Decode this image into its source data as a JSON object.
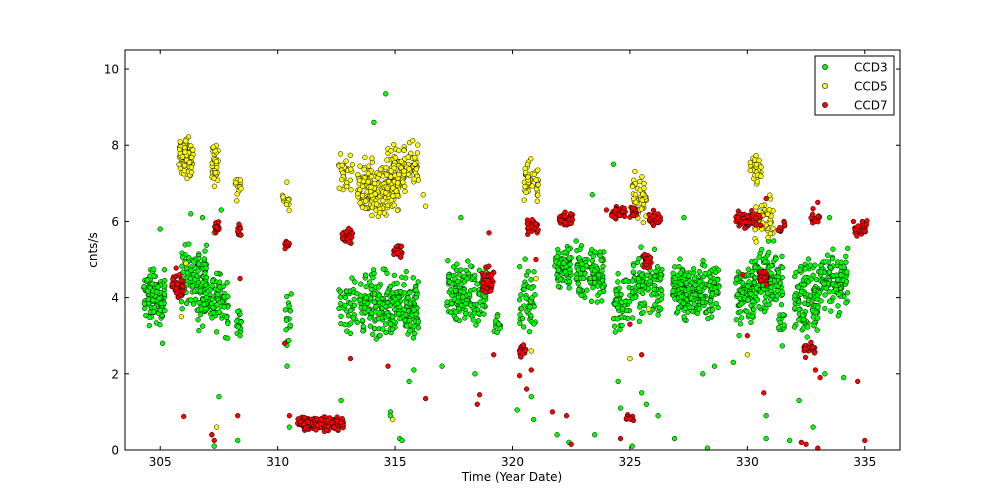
{
  "chart_data": {
    "type": "scatter",
    "xlabel": "Time (Year Date)",
    "ylabel": "cnts/s",
    "xlim": [
      303.5,
      336.5
    ],
    "ylim": [
      0,
      10.5
    ],
    "xticks": [
      305,
      310,
      315,
      320,
      325,
      330,
      335
    ],
    "yticks": [
      0,
      2,
      4,
      6,
      8,
      10
    ],
    "grid": false,
    "legend_position": "top-right",
    "series": [
      {
        "name": "CCD3",
        "color": "#00ff00",
        "clusters": [
          {
            "x": [
              304.3,
              305.2
            ],
            "y": [
              3.0,
              5.0
            ],
            "n": 120
          },
          {
            "x": [
              305.9,
              307.0
            ],
            "y": [
              3.3,
              5.8
            ],
            "n": 110
          },
          {
            "x": [
              306.6,
              307.4
            ],
            "y": [
              2.8,
              5.2
            ],
            "n": 60
          },
          {
            "x": [
              307.4,
              307.9
            ],
            "y": [
              2.7,
              5.2
            ],
            "n": 45
          },
          {
            "x": [
              308.25,
              308.45
            ],
            "y": [
              2.4,
              4.2
            ],
            "n": 16
          },
          {
            "x": [
              310.3,
              310.6
            ],
            "y": [
              2.2,
              4.6
            ],
            "n": 18
          },
          {
            "x": [
              312.6,
              313.4
            ],
            "y": [
              2.7,
              5.0
            ],
            "n": 40
          },
          {
            "x": [
              313.5,
              316.0
            ],
            "y": [
              2.5,
              5.0
            ],
            "n": 260
          },
          {
            "x": [
              317.2,
              318.9
            ],
            "y": [
              3.0,
              5.2
            ],
            "n": 150
          },
          {
            "x": [
              319.2,
              319.5
            ],
            "y": [
              3.0,
              3.7
            ],
            "n": 12
          },
          {
            "x": [
              320.3,
              321.0
            ],
            "y": [
              2.6,
              5.4
            ],
            "n": 50
          },
          {
            "x": [
              321.8,
              322.5
            ],
            "y": [
              3.8,
              5.8
            ],
            "n": 70
          },
          {
            "x": [
              322.7,
              323.9
            ],
            "y": [
              3.5,
              5.8
            ],
            "n": 110
          },
          {
            "x": [
              324.3,
              325.0
            ],
            "y": [
              2.6,
              5.2
            ],
            "n": 55
          },
          {
            "x": [
              325.1,
              326.4
            ],
            "y": [
              3.2,
              5.4
            ],
            "n": 110
          },
          {
            "x": [
              326.8,
              328.8
            ],
            "y": [
              3.2,
              5.2
            ],
            "n": 240
          },
          {
            "x": [
              329.5,
              330.3
            ],
            "y": [
              2.8,
              5.2
            ],
            "n": 90
          },
          {
            "x": [
              330.3,
              331.5
            ],
            "y": [
              3.3,
              5.6
            ],
            "n": 130
          },
          {
            "x": [
              331.3,
              331.6
            ],
            "y": [
              2.5,
              4.2
            ],
            "n": 12
          },
          {
            "x": [
              332.0,
              333.0
            ],
            "y": [
              2.4,
              5.6
            ],
            "n": 110
          },
          {
            "x": [
              333.0,
              334.3
            ],
            "y": [
              3.3,
              5.6
            ],
            "n": 120
          }
        ],
        "points": [
          [
            305.0,
            5.8
          ],
          [
            305.1,
            2.8
          ],
          [
            306.3,
            6.2
          ],
          [
            306.8,
            6.1
          ],
          [
            307.6,
            6.3
          ],
          [
            307.5,
            1.4
          ],
          [
            307.2,
            0.4
          ],
          [
            307.3,
            0.1
          ],
          [
            308.3,
            0.25
          ],
          [
            308.4,
            3.0
          ],
          [
            310.4,
            2.2
          ],
          [
            310.5,
            0.6
          ],
          [
            312.7,
            1.3
          ],
          [
            314.1,
            8.6
          ],
          [
            314.6,
            9.35
          ],
          [
            314.8,
            1.0
          ],
          [
            314.8,
            0.9
          ],
          [
            315.2,
            0.3
          ],
          [
            315.3,
            0.25
          ],
          [
            315.6,
            1.8
          ],
          [
            315.8,
            2.1
          ],
          [
            317.0,
            2.2
          ],
          [
            317.8,
            6.1
          ],
          [
            318.4,
            2.0
          ],
          [
            320.2,
            1.05
          ],
          [
            320.9,
            0.8
          ],
          [
            320.8,
            1.4
          ],
          [
            321.9,
            0.4
          ],
          [
            322.4,
            0.2
          ],
          [
            323.4,
            6.7
          ],
          [
            323.5,
            0.4
          ],
          [
            324.3,
            7.5
          ],
          [
            324.5,
            1.8
          ],
          [
            324.6,
            1.1
          ],
          [
            325.1,
            0.1
          ],
          [
            325.5,
            1.5
          ],
          [
            325.7,
            1.2
          ],
          [
            326.2,
            0.9
          ],
          [
            326.9,
            0.3
          ],
          [
            327.3,
            6.1
          ],
          [
            328.1,
            2.0
          ],
          [
            328.3,
            0.05
          ],
          [
            328.6,
            2.2
          ],
          [
            329.4,
            2.3
          ],
          [
            330.8,
            0.3
          ],
          [
            330.8,
            0.9
          ],
          [
            331.8,
            0.25
          ],
          [
            332.2,
            1.3
          ],
          [
            332.8,
            0.6
          ],
          [
            333.3,
            2.0
          ],
          [
            333.5,
            6.1
          ],
          [
            334.1,
            1.9
          ]
        ]
      },
      {
        "name": "CCD5",
        "color": "#ffff00",
        "clusters": [
          {
            "x": [
              305.8,
              306.4
            ],
            "y": [
              6.9,
              8.5
            ],
            "n": 90
          },
          {
            "x": [
              307.2,
              307.5
            ],
            "y": [
              6.8,
              8.3
            ],
            "n": 30
          },
          {
            "x": [
              308.2,
              308.45
            ],
            "y": [
              6.4,
              7.3
            ],
            "n": 14
          },
          {
            "x": [
              310.2,
              310.5
            ],
            "y": [
              6.0,
              7.1
            ],
            "n": 12
          },
          {
            "x": [
              312.6,
              313.2
            ],
            "y": [
              6.5,
              8.0
            ],
            "n": 30
          },
          {
            "x": [
              313.4,
              315.2
            ],
            "y": [
              5.8,
              8.0
            ],
            "n": 210
          },
          {
            "x": [
              314.8,
              316.0
            ],
            "y": [
              6.4,
              8.4
            ],
            "n": 110
          },
          {
            "x": [
              320.5,
              321.1
            ],
            "y": [
              6.3,
              7.8
            ],
            "n": 45
          },
          {
            "x": [
              325.1,
              325.7
            ],
            "y": [
              5.7,
              7.5
            ],
            "n": 55
          },
          {
            "x": [
              330.1,
              330.6
            ],
            "y": [
              6.8,
              7.9
            ],
            "n": 30
          },
          {
            "x": [
              330.3,
              331.1
            ],
            "y": [
              5.2,
              6.8
            ],
            "n": 50
          }
        ],
        "points": [
          [
            305.9,
            3.5
          ],
          [
            306.1,
            4.9
          ],
          [
            307.3,
            5.7
          ],
          [
            307.4,
            0.6
          ],
          [
            313.0,
            5.5
          ],
          [
            314.9,
            0.8
          ],
          [
            316.2,
            6.7
          ],
          [
            316.3,
            6.4
          ],
          [
            320.8,
            2.6
          ],
          [
            321.0,
            4.5
          ],
          [
            325.0,
            2.4
          ],
          [
            325.8,
            3.7
          ],
          [
            330.0,
            2.5
          ],
          [
            330.5,
            7.6
          ]
        ]
      },
      {
        "name": "CCD7",
        "color": "#ff0000",
        "clusters": [
          {
            "x": [
              305.5,
              306.0
            ],
            "y": [
              3.8,
              4.8
            ],
            "n": 45
          },
          {
            "x": [
              307.3,
              307.5
            ],
            "y": [
              5.6,
              6.1
            ],
            "n": 14
          },
          {
            "x": [
              308.3,
              308.45
            ],
            "y": [
              5.5,
              6.0
            ],
            "n": 10
          },
          {
            "x": [
              310.3,
              310.5
            ],
            "y": [
              5.2,
              5.6
            ],
            "n": 10
          },
          {
            "x": [
              310.8,
              312.8
            ],
            "y": [
              0.45,
              0.95
            ],
            "n": 180
          },
          {
            "x": [
              312.7,
              313.2
            ],
            "y": [
              5.3,
              5.9
            ],
            "n": 28
          },
          {
            "x": [
              314.9,
              315.3
            ],
            "y": [
              4.9,
              5.6
            ],
            "n": 24
          },
          {
            "x": [
              318.7,
              319.2
            ],
            "y": [
              3.9,
              5.0
            ],
            "n": 40
          },
          {
            "x": [
              320.3,
              320.6
            ],
            "y": [
              2.3,
              2.9
            ],
            "n": 24
          },
          {
            "x": [
              320.6,
              321.1
            ],
            "y": [
              5.5,
              6.2
            ],
            "n": 30
          },
          {
            "x": [
              322.0,
              322.6
            ],
            "y": [
              5.8,
              6.3
            ],
            "n": 32
          },
          {
            "x": [
              324.2,
              324.8
            ],
            "y": [
              6.0,
              6.5
            ],
            "n": 38
          },
          {
            "x": [
              324.8,
              325.2
            ],
            "y": [
              0.7,
              0.95
            ],
            "n": 12
          },
          {
            "x": [
              325.0,
              325.3
            ],
            "y": [
              6.0,
              6.5
            ],
            "n": 16
          },
          {
            "x": [
              325.5,
              325.9
            ],
            "y": [
              4.7,
              5.2
            ],
            "n": 20
          },
          {
            "x": [
              325.8,
              326.3
            ],
            "y": [
              5.8,
              6.4
            ],
            "n": 28
          },
          {
            "x": [
              329.5,
              330.6
            ],
            "y": [
              5.7,
              6.4
            ],
            "n": 65
          },
          {
            "x": [
              330.5,
              330.9
            ],
            "y": [
              4.2,
              4.9
            ],
            "n": 30
          },
          {
            "x": [
              331.3,
              331.6
            ],
            "y": [
              5.6,
              6.2
            ],
            "n": 10
          },
          {
            "x": [
              332.4,
              332.9
            ],
            "y": [
              2.4,
              2.9
            ],
            "n": 30
          },
          {
            "x": [
              332.7,
              333.1
            ],
            "y": [
              5.8,
              6.4
            ],
            "n": 16
          },
          {
            "x": [
              334.5,
              335.1
            ],
            "y": [
              5.5,
              6.1
            ],
            "n": 32
          }
        ],
        "points": [
          [
            306.0,
            0.88
          ],
          [
            307.2,
            0.4
          ],
          [
            307.3,
            0.25
          ],
          [
            308.3,
            0.9
          ],
          [
            308.4,
            4.5
          ],
          [
            310.3,
            2.8
          ],
          [
            310.5,
            0.9
          ],
          [
            313.1,
            2.4
          ],
          [
            314.7,
            2.2
          ],
          [
            316.3,
            1.35
          ],
          [
            318.5,
            1.2
          ],
          [
            318.6,
            1.45
          ],
          [
            319.0,
            5.7
          ],
          [
            319.2,
            2.5
          ],
          [
            320.3,
            1.95
          ],
          [
            320.6,
            1.6
          ],
          [
            320.8,
            2.1
          ],
          [
            321.0,
            5.0
          ],
          [
            321.7,
            1.0
          ],
          [
            322.3,
            0.9
          ],
          [
            322.5,
            0.15
          ],
          [
            324.0,
            6.3
          ],
          [
            324.6,
            0.3
          ],
          [
            325.0,
            3.3
          ],
          [
            325.5,
            2.5
          ],
          [
            329.8,
            4.6
          ],
          [
            330.0,
            3.0
          ],
          [
            330.7,
            1.5
          ],
          [
            330.8,
            6.6
          ],
          [
            332.3,
            0.2
          ],
          [
            332.5,
            0.15
          ],
          [
            332.9,
            2.1
          ],
          [
            333.0,
            0.05
          ],
          [
            333.1,
            1.9
          ],
          [
            333.0,
            6.5
          ],
          [
            334.7,
            1.8
          ],
          [
            335.0,
            0.25
          ]
        ]
      }
    ]
  }
}
